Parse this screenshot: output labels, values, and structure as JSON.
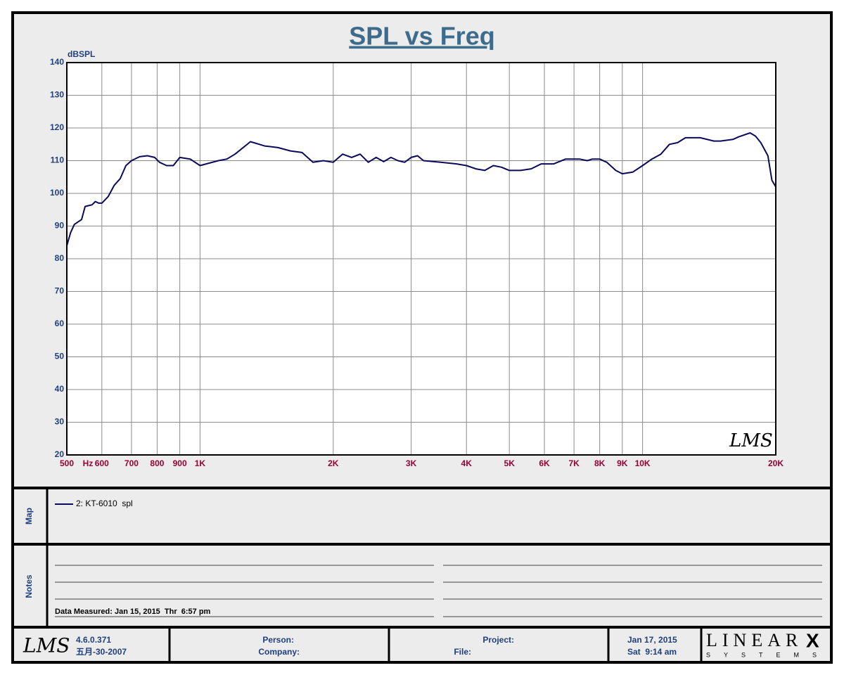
{
  "chart_data": {
    "type": "line",
    "title": "SPL vs Freq",
    "y_label": "dBSPL",
    "x_label": "Hz",
    "watermark": "LMS",
    "xscale": "log",
    "grid": true,
    "x": [
      500,
      510,
      520,
      540,
      550,
      570,
      580,
      590,
      600,
      620,
      640,
      660,
      680,
      700,
      730,
      760,
      790,
      810,
      840,
      870,
      900,
      950,
      1000,
      1100,
      1150,
      1200,
      1300,
      1400,
      1500,
      1600,
      1700,
      1800,
      1900,
      2000,
      2100,
      2200,
      2300,
      2400,
      2500,
      2600,
      2700,
      2800,
      2900,
      3000,
      3100,
      3200,
      3500,
      3800,
      4000,
      4200,
      4400,
      4600,
      4800,
      5000,
      5300,
      5600,
      5900,
      6300,
      6700,
      7000,
      7200,
      7500,
      7700,
      8000,
      8300,
      8700,
      9000,
      9500,
      10000,
      10500,
      11000,
      11500,
      12000,
      12500,
      13500,
      14500,
      15000,
      16000,
      16500,
      17500,
      18000,
      18500,
      19200,
      19600,
      20000
    ],
    "series": [
      {
        "name": "2: KT-6010  spl",
        "color": "#0a0a5c",
        "values": [
          84,
          88,
          90.5,
          92,
          96,
          96.5,
          97.5,
          97,
          97,
          99,
          102.5,
          104.5,
          108.5,
          110,
          111.2,
          111.5,
          111,
          109.5,
          108.5,
          108.5,
          111,
          110.5,
          108.5,
          110,
          110.5,
          112,
          115.8,
          114.5,
          114,
          113,
          112.5,
          109.5,
          110,
          109.5,
          112,
          111,
          112,
          109.5,
          111,
          109.7,
          111,
          110,
          109.5,
          111,
          111.5,
          110,
          109.5,
          109,
          108.5,
          107.5,
          107,
          108.5,
          108,
          107,
          107,
          107.5,
          109,
          109,
          110.5,
          110.5,
          110.5,
          110,
          110.5,
          110.5,
          109.5,
          107,
          106,
          106.5,
          108.5,
          110.5,
          112,
          115,
          115.5,
          117,
          117,
          116,
          116,
          116.5,
          117.3,
          118.5,
          117.5,
          115.5,
          111.5,
          104,
          102
        ]
      }
    ],
    "xlim": [
      500,
      20000
    ],
    "ylim": [
      20,
      140
    ],
    "yticks": [
      20,
      30,
      40,
      50,
      60,
      70,
      80,
      90,
      100,
      110,
      120,
      130,
      140
    ],
    "xticks": [
      500,
      600,
      700,
      800,
      900,
      {
        "value": 1000,
        "label": "1K"
      },
      {
        "value": 2000,
        "label": "2K"
      },
      {
        "value": 3000,
        "label": "3K"
      },
      {
        "value": 4000,
        "label": "4K"
      },
      {
        "value": 5000,
        "label": "5K"
      },
      {
        "value": 6000,
        "label": "6K"
      },
      {
        "value": 7000,
        "label": "7K"
      },
      {
        "value": 8000,
        "label": "8K"
      },
      {
        "value": 9000,
        "label": "9K"
      },
      {
        "value": 10000,
        "label": "10K"
      },
      {
        "value": 20000,
        "label": "20K"
      }
    ]
  },
  "map": {
    "label": "Map"
  },
  "notes": {
    "label": "Notes",
    "lines": [
      "Data Measured: Jan 15, 2015  Thr  6:57 pm"
    ]
  },
  "footer": {
    "logo": "LMS",
    "version": "4.6.0.371",
    "build_date": "五月-30-2007",
    "person": "Person:",
    "company": "Company:",
    "project": "Project:",
    "file": "File:",
    "date": "Jan 17, 2015",
    "time": "Sat  9:14 am",
    "brand": "LINEAR",
    "brand_x": "X",
    "brand_sub": "SYSTEMS"
  }
}
